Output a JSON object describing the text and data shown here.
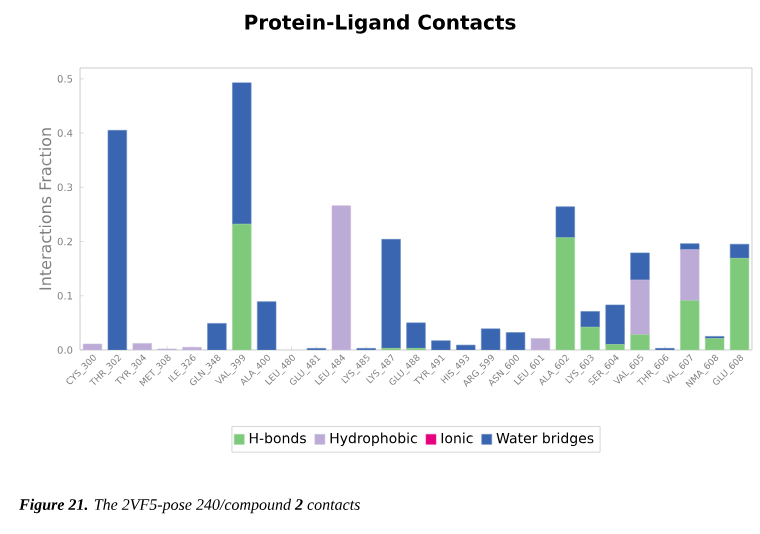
{
  "chart_data": {
    "type": "bar",
    "title": "Protein-Ligand Contacts",
    "ylabel": "Interactions Fraction",
    "categories": [
      "CYS_300",
      "THR_302",
      "TYR_304",
      "MET_308",
      "ILE_326",
      "GLN_348",
      "VAL_399",
      "ALA_400",
      "LEU_480",
      "GLU_481",
      "LEU_484",
      "LYS_485",
      "LYS_487",
      "GLU_488",
      "TYR_491",
      "HIS_493",
      "ARG_599",
      "ASN_600",
      "LEU_601",
      "ALA_602",
      "LYS_603",
      "SER_604",
      "VAL_605",
      "THR_606",
      "VAL_607",
      "NMA_608",
      "GLU_608"
    ],
    "stacked": true,
    "series": [
      {
        "name": "H-bonds",
        "color": "#7ec97a",
        "values": [
          0,
          0,
          0,
          0,
          0,
          0,
          0.232,
          0,
          0,
          0,
          0,
          0,
          0.003,
          0.003,
          0,
          0,
          0,
          0,
          0,
          0.207,
          0.042,
          0.01,
          0.028,
          0,
          0.091,
          0.021,
          0.169
        ]
      },
      {
        "name": "Hydrophobic",
        "color": "#bcabd6",
        "values": [
          0.011,
          0,
          0.012,
          0.002,
          0.005,
          0,
          0,
          0,
          0,
          0,
          0.266,
          0,
          0,
          0,
          0,
          0,
          0,
          0,
          0.021,
          0,
          0,
          0,
          0.101,
          0,
          0.094,
          0,
          0
        ]
      },
      {
        "name": "Ionic",
        "color": "#e6007e",
        "values": [
          0,
          0,
          0,
          0,
          0,
          0,
          0,
          0,
          0,
          0,
          0,
          0,
          0,
          0,
          0,
          0,
          0,
          0,
          0,
          0,
          0,
          0,
          0,
          0,
          0,
          0,
          0
        ]
      },
      {
        "name": "Water bridges",
        "color": "#3a65b0",
        "values": [
          0,
          0.405,
          0,
          0,
          0,
          0.049,
          0.261,
          0.089,
          0,
          0.003,
          0,
          0.003,
          0.201,
          0.047,
          0.017,
          0.009,
          0.039,
          0.032,
          0,
          0.057,
          0.029,
          0.073,
          0.05,
          0.003,
          0.011,
          0.004,
          0.026
        ]
      }
    ],
    "ylim": [
      0,
      0.52
    ],
    "yticks": [
      {
        "value": 0,
        "label": "0.0"
      },
      {
        "value": 0.1,
        "label": "0.1"
      },
      {
        "value": 0.2,
        "label": "0.2"
      },
      {
        "value": 0.3,
        "label": "0.3"
      },
      {
        "value": 0.4,
        "label": "0.4"
      },
      {
        "value": 0.5,
        "label": "0.5"
      }
    ],
    "legend": "bottom",
    "annotations": [
      "**Figure 21.** The 2VF5-pose 240/compound **2** contacts"
    ]
  }
}
